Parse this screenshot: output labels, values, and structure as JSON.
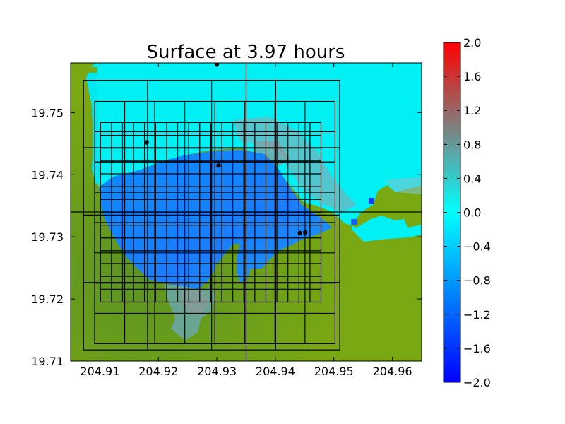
{
  "chart_data": {
    "type": "heatmap",
    "title": "Surface at 3.97 hours",
    "xlabel": "",
    "ylabel": "",
    "xlim": [
      204.905,
      204.965
    ],
    "ylim": [
      19.71,
      19.758
    ],
    "x_ticks": [
      204.91,
      204.92,
      204.93,
      204.94,
      204.95,
      204.96
    ],
    "x_tick_labels": [
      "204.91",
      "204.92",
      "204.93",
      "204.94",
      "204.95",
      "204.96"
    ],
    "y_ticks": [
      19.71,
      19.72,
      19.73,
      19.74,
      19.75
    ],
    "y_tick_labels": [
      "19.71",
      "19.72",
      "19.73",
      "19.74",
      "19.75"
    ],
    "colorbar": {
      "min": -2.0,
      "max": 2.0,
      "ticks": [
        2.0,
        1.6,
        1.2,
        0.8,
        0.4,
        0.0,
        -0.4,
        -0.8,
        -1.2,
        -1.6,
        -2.0
      ],
      "tick_labels": [
        "2.0",
        "1.6",
        "1.2",
        "0.8",
        "0.4",
        "0.0",
        "−0.4",
        "−0.8",
        "−1.2",
        "−1.6",
        "−2.0"
      ],
      "colors": [
        "#0000ff",
        "#00ffff",
        "#ff0000"
      ]
    },
    "land_color": "#7aa812",
    "gauges": [
      {
        "x": 204.93,
        "y": 19.7578
      },
      {
        "x": 204.918,
        "y": 19.7452
      },
      {
        "x": 204.9303,
        "y": 19.7415
      },
      {
        "x": 204.9442,
        "y": 19.7306
      },
      {
        "x": 204.9451,
        "y": 19.7307
      }
    ],
    "patch_boxes": [
      {
        "x": [
          204.9072,
          204.951
        ],
        "y": [
          19.7118,
          19.7552
        ]
      },
      {
        "x": [
          204.9091,
          204.9502
        ],
        "y": [
          19.7128,
          19.7518
        ]
      },
      {
        "x": [
          204.9101,
          204.9478
        ],
        "y": [
          19.7195,
          19.7484
        ]
      }
    ],
    "crosshair": {
      "x": 204.935,
      "y": 19.734
    }
  }
}
